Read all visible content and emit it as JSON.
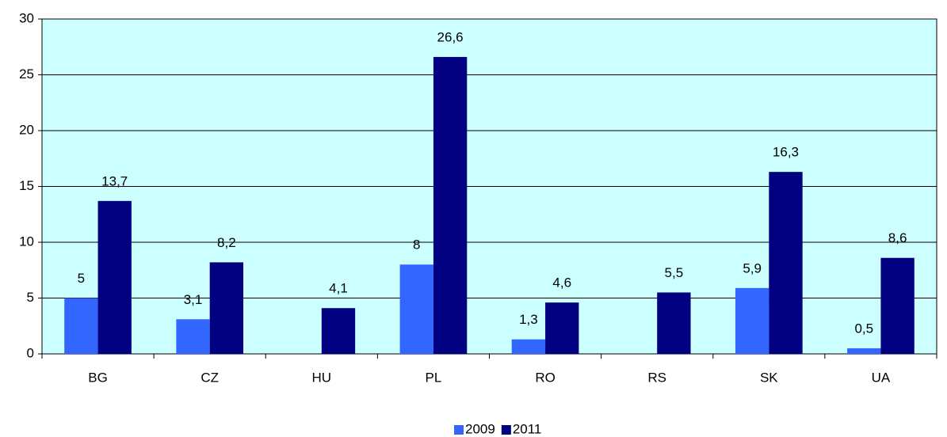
{
  "chart_data": {
    "type": "bar",
    "categories": [
      "BG",
      "CZ",
      "HU",
      "PL",
      "RO",
      "RS",
      "SK",
      "UA"
    ],
    "series": [
      {
        "name": "2009",
        "color": "#3366ff",
        "values": [
          5,
          3.1,
          null,
          8,
          1.3,
          null,
          5.9,
          0.5
        ],
        "value_labels": [
          "5",
          "3,1",
          null,
          "8",
          "1,3",
          null,
          "5,9",
          "0,5"
        ]
      },
      {
        "name": "2011",
        "color": "#000080",
        "values": [
          13.7,
          8.2,
          4.1,
          26.6,
          4.6,
          5.5,
          16.3,
          8.6
        ],
        "value_labels": [
          "13,7",
          "8,2",
          "4,1",
          "26,6",
          "4,6",
          "5,5",
          "16,3",
          "8,6"
        ]
      }
    ],
    "ylim": [
      0,
      30
    ],
    "yticks": [
      0,
      5,
      10,
      15,
      20,
      25,
      30
    ],
    "grid": true,
    "legend": "bottom",
    "plot_background": "#ccffff"
  }
}
